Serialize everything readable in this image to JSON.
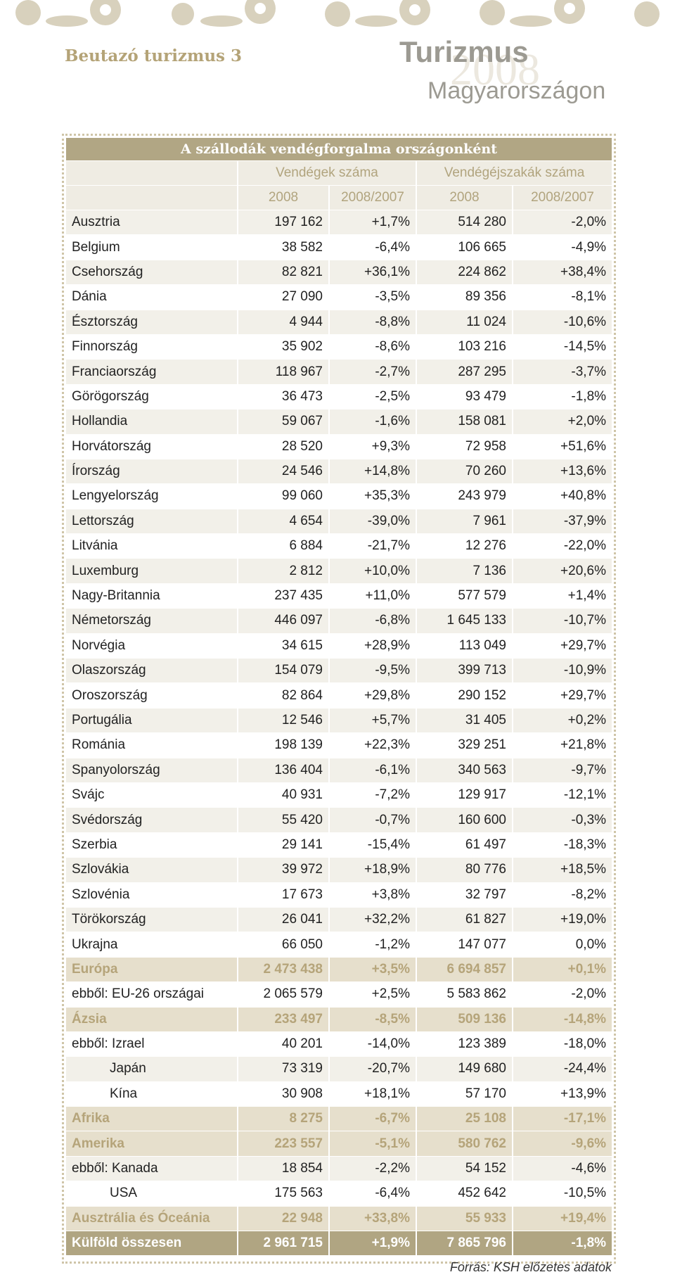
{
  "header": {
    "section": "Beutazó turizmus 3",
    "title": "Turizmus",
    "watermark": "2008",
    "subtitle": "Magyarországon"
  },
  "table": {
    "title": "A szállodák vendégforgalma országonként",
    "groups": [
      "Vendégek száma",
      "Vendégéjszakák száma"
    ],
    "columns": [
      "2008",
      "2008/2007",
      "2008",
      "2008/2007"
    ],
    "rows": [
      {
        "cells": [
          "Ausztria",
          "197 162",
          "+1,7%",
          "514 280",
          "-2,0%"
        ]
      },
      {
        "cells": [
          "Belgium",
          "38 582",
          "-6,4%",
          "106 665",
          "-4,9%"
        ]
      },
      {
        "cells": [
          "Csehország",
          "82 821",
          "+36,1%",
          "224 862",
          "+38,4%"
        ]
      },
      {
        "cells": [
          "Dánia",
          "27 090",
          "-3,5%",
          "89 356",
          "-8,1%"
        ]
      },
      {
        "cells": [
          "Észtország",
          "4 944",
          "-8,8%",
          "11 024",
          "-10,6%"
        ]
      },
      {
        "cells": [
          "Finnország",
          "35 902",
          "-8,6%",
          "103 216",
          "-14,5%"
        ]
      },
      {
        "cells": [
          "Franciaország",
          "118 967",
          "-2,7%",
          "287 295",
          "-3,7%"
        ]
      },
      {
        "cells": [
          "Görögország",
          "36 473",
          "-2,5%",
          "93 479",
          "-1,8%"
        ]
      },
      {
        "cells": [
          "Hollandia",
          "59 067",
          "-1,6%",
          "158 081",
          "+2,0%"
        ]
      },
      {
        "cells": [
          "Horvátország",
          "28 520",
          "+9,3%",
          "72 958",
          "+51,6%"
        ]
      },
      {
        "cells": [
          "Írország",
          "24 546",
          "+14,8%",
          "70 260",
          "+13,6%"
        ]
      },
      {
        "cells": [
          "Lengyelország",
          "99 060",
          "+35,3%",
          "243 979",
          "+40,8%"
        ]
      },
      {
        "cells": [
          "Lettország",
          "4 654",
          "-39,0%",
          "7 961",
          "-37,9%"
        ]
      },
      {
        "cells": [
          "Litvánia",
          "6 884",
          "-21,7%",
          "12 276",
          "-22,0%"
        ]
      },
      {
        "cells": [
          "Luxemburg",
          "2 812",
          "+10,0%",
          "7 136",
          "+20,6%"
        ]
      },
      {
        "cells": [
          "Nagy-Britannia",
          "237 435",
          "+11,0%",
          "577 579",
          "+1,4%"
        ]
      },
      {
        "cells": [
          "Németország",
          "446 097",
          "-6,8%",
          "1 645 133",
          "-10,7%"
        ]
      },
      {
        "cells": [
          "Norvégia",
          "34 615",
          "+28,9%",
          "113 049",
          "+29,7%"
        ]
      },
      {
        "cells": [
          "Olaszország",
          "154 079",
          "-9,5%",
          "399 713",
          "-10,9%"
        ]
      },
      {
        "cells": [
          "Oroszország",
          "82 864",
          "+29,8%",
          "290 152",
          "+29,7%"
        ]
      },
      {
        "cells": [
          "Portugália",
          "12 546",
          "+5,7%",
          "31 405",
          "+0,2%"
        ]
      },
      {
        "cells": [
          "Románia",
          "198 139",
          "+22,3%",
          "329 251",
          "+21,8%"
        ]
      },
      {
        "cells": [
          "Spanyolország",
          "136 404",
          "-6,1%",
          "340 563",
          "-9,7%"
        ]
      },
      {
        "cells": [
          "Svájc",
          "40 931",
          "-7,2%",
          "129 917",
          "-12,1%"
        ]
      },
      {
        "cells": [
          "Svédország",
          "55 420",
          "-0,7%",
          "160 600",
          "-0,3%"
        ]
      },
      {
        "cells": [
          "Szerbia",
          "29 141",
          "-15,4%",
          "61 497",
          "-18,3%"
        ]
      },
      {
        "cells": [
          "Szlovákia",
          "39 972",
          "+18,9%",
          "80 776",
          "+18,5%"
        ]
      },
      {
        "cells": [
          "Szlovénia",
          "17 673",
          "+3,8%",
          "32 797",
          "-8,2%"
        ]
      },
      {
        "cells": [
          "Törökország",
          "26 041",
          "+32,2%",
          "61 827",
          "+19,0%"
        ]
      },
      {
        "cells": [
          "Ukrajna",
          "66 050",
          "-1,2%",
          "147 077",
          "0,0%"
        ]
      },
      {
        "cells": [
          "Európa",
          "2 473 438",
          "+3,5%",
          "6 694 857",
          "+0,1%"
        ],
        "style": "region"
      },
      {
        "cells": [
          "ebből: EU-26 országai",
          "2 065 579",
          "+2,5%",
          "5 583 862",
          "-2,0%"
        ]
      },
      {
        "cells": [
          "Ázsia",
          "233 497",
          "-8,5%",
          "509 136",
          "-14,8%"
        ],
        "style": "region"
      },
      {
        "cells": [
          "ebből: Izrael",
          "40 201",
          "-14,0%",
          "123 389",
          "-18,0%"
        ]
      },
      {
        "cells": [
          "Japán",
          "73 319",
          "-20,7%",
          "149 680",
          "-24,4%"
        ],
        "style": "indent"
      },
      {
        "cells": [
          "Kína",
          "30 908",
          "+18,1%",
          "57 170",
          "+13,9%"
        ],
        "style": "indent"
      },
      {
        "cells": [
          "Afrika",
          "8 275",
          "-6,7%",
          "25 108",
          "-17,1%"
        ],
        "style": "region"
      },
      {
        "cells": [
          "Amerika",
          "223 557",
          "-5,1%",
          "580 762",
          "-9,6%"
        ],
        "style": "region"
      },
      {
        "cells": [
          "ebből: Kanada",
          "18 854",
          "-2,2%",
          "54 152",
          "-4,6%"
        ]
      },
      {
        "cells": [
          "USA",
          "175 563",
          "-6,4%",
          "452 642",
          "-10,5%"
        ],
        "style": "indent"
      },
      {
        "cells": [
          "Ausztrália és Óceánia",
          "22 948",
          "+33,8%",
          "55 933",
          "+19,4%"
        ],
        "style": "region"
      },
      {
        "cells": [
          "Külföld összesen",
          "2 961 715",
          "+1,9%",
          "7 865 796",
          "-1,8%"
        ],
        "style": "total"
      }
    ]
  },
  "source": "Forrás: KSH előzetes adatok"
}
